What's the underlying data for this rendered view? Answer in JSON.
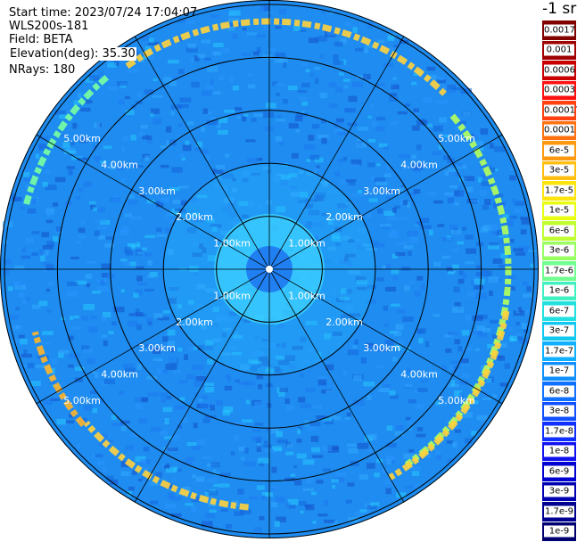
{
  "header": {
    "start_time": "Start time: 2023/07/24 17:04:07",
    "instrument": "WLS200s-181",
    "field": "Field: BETA",
    "elevation": "Elevation(deg): 35.30",
    "nrays": "NRays: 180"
  },
  "colorbar": {
    "title": "-1 sr",
    "labels": [
      "0.0017",
      "0.001",
      "0.0006",
      "0.0003",
      "0.00017",
      "0.0001",
      "6e-5",
      "3e-5",
      "1.7e-5",
      "1e-5",
      "6e-6",
      "3e-6",
      "1.7e-6",
      "1e-6",
      "6e-7",
      "3e-7",
      "1.7e-7",
      "1e-7",
      "6e-8",
      "3e-8",
      "1.7e-8",
      "1e-8",
      "6e-9",
      "3e-9",
      "1.7e-9",
      "1e-9"
    ],
    "colors": [
      "#800000",
      "#a00000",
      "#c80000",
      "#ff1010",
      "#ff4010",
      "#ff7010",
      "#ff9a10",
      "#ffbf10",
      "#ffe510",
      "#e8ff10",
      "#c0ff30",
      "#98ff60",
      "#70ff90",
      "#40f0c0",
      "#20e0e0",
      "#10c8f0",
      "#10b0ff",
      "#1090ff",
      "#1070ff",
      "#1050ff",
      "#1030ff",
      "#1010f0",
      "#0000d0",
      "#0000b0",
      "#000090",
      "#000070"
    ]
  },
  "rings": {
    "labels": [
      "1.00km",
      "2.00km",
      "3.00km",
      "4.00km",
      "5.00km"
    ],
    "colors": {
      "background": "#1e8cf0",
      "clear_zone": "#28b4ff",
      "near": "#3cd2ff",
      "band": "#ffd23c"
    }
  }
}
